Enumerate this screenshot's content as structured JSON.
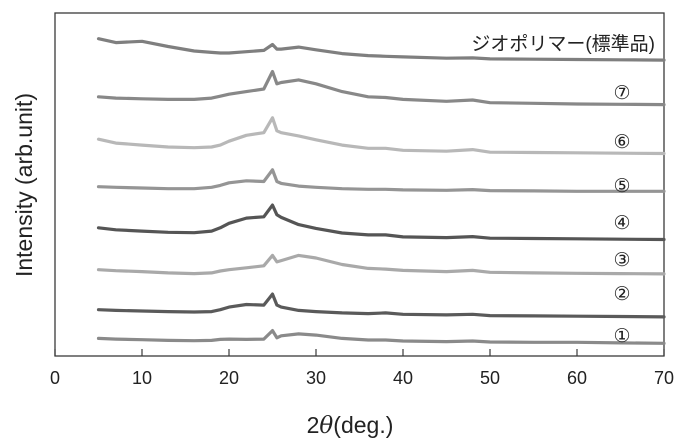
{
  "chart_data": {
    "type": "line",
    "title": "",
    "xlabel_prefix": "2",
    "xlabel_symbol": "θ",
    "xlabel_suffix": "(deg.)",
    "ylabel": "Intensity (arb.unit)",
    "xlim": [
      0,
      70
    ],
    "xticks": [
      0,
      10,
      20,
      30,
      40,
      50,
      60,
      70
    ],
    "yticks_shown": false,
    "grid": false,
    "x": [
      5,
      7,
      10,
      13,
      16,
      18,
      19,
      20,
      22,
      24,
      25,
      25.5,
      26,
      28,
      30,
      33,
      36,
      38,
      40,
      45,
      48,
      50,
      55,
      60,
      65,
      70
    ],
    "series": [
      {
        "name": "①",
        "color": "#8a8a8a",
        "values": [
          0.4,
          0.3,
          0.2,
          0.1,
          0.05,
          0.1,
          0.25,
          0.3,
          0.25,
          0.3,
          1.6,
          0.5,
          0.8,
          1.1,
          0.9,
          0.4,
          0.15,
          0.15,
          0.0,
          -0.1,
          0.0,
          -0.15,
          -0.2,
          -0.2,
          -0.3,
          -0.35
        ]
      },
      {
        "name": "②",
        "color": "#5a5a5a",
        "values": [
          0.2,
          0.1,
          0.0,
          -0.1,
          -0.15,
          -0.1,
          0.2,
          0.6,
          1.0,
          0.9,
          2.6,
          0.9,
          0.6,
          0.1,
          -0.1,
          -0.3,
          -0.4,
          -0.3,
          -0.5,
          -0.6,
          -0.5,
          -0.7,
          -0.75,
          -0.8,
          -0.85,
          -0.9
        ]
      },
      {
        "name": "③",
        "color": "#a9a9a9",
        "values": [
          0.2,
          0.05,
          -0.1,
          -0.3,
          -0.4,
          -0.3,
          0.0,
          0.2,
          0.5,
          0.8,
          2.4,
          1.4,
          1.6,
          2.4,
          2.0,
          1.0,
          0.4,
          0.3,
          0.1,
          -0.1,
          0.1,
          -0.2,
          -0.3,
          -0.35,
          -0.4,
          -0.45
        ]
      },
      {
        "name": "④",
        "color": "#555555",
        "values": [
          0.8,
          0.5,
          0.3,
          0.1,
          0.05,
          0.3,
          0.8,
          1.5,
          2.3,
          2.5,
          4.3,
          2.8,
          2.4,
          1.3,
          0.7,
          0.0,
          -0.3,
          -0.3,
          -0.6,
          -0.7,
          -0.55,
          -0.8,
          -0.85,
          -0.9,
          -0.95,
          -1.0
        ]
      },
      {
        "name": "⑤",
        "color": "#959595",
        "values": [
          0.2,
          0.1,
          0.0,
          -0.1,
          -0.1,
          0.1,
          0.4,
          0.8,
          1.1,
          1.0,
          2.8,
          1.0,
          0.7,
          0.3,
          0.1,
          -0.1,
          -0.2,
          -0.2,
          -0.3,
          -0.35,
          -0.25,
          -0.4,
          -0.45,
          -0.5,
          -0.5,
          -0.5
        ]
      },
      {
        "name": "⑥",
        "color": "#b8b8b8",
        "values": [
          1.2,
          0.6,
          0.3,
          0.0,
          -0.1,
          0.0,
          0.3,
          0.9,
          1.8,
          2.2,
          4.5,
          2.5,
          2.2,
          1.7,
          1.1,
          0.3,
          -0.2,
          -0.2,
          -0.5,
          -0.65,
          -0.4,
          -0.8,
          -0.85,
          -0.9,
          -0.95,
          -1.0
        ]
      },
      {
        "name": "⑦",
        "color": "#888888",
        "values": [
          0.8,
          0.6,
          0.5,
          0.4,
          0.4,
          0.6,
          0.9,
          1.2,
          1.6,
          2.0,
          4.7,
          2.8,
          3.0,
          3.4,
          2.8,
          1.6,
          0.8,
          0.7,
          0.4,
          0.1,
          0.3,
          -0.1,
          -0.2,
          -0.3,
          -0.35,
          -0.4
        ]
      },
      {
        "name": "ジオポリマー(標準品)",
        "color": "#7f7f7f",
        "values": [
          2.2,
          1.6,
          1.8,
          1.0,
          0.3,
          0.1,
          0.0,
          0.0,
          0.2,
          0.4,
          1.3,
          0.6,
          0.6,
          0.9,
          0.5,
          -0.1,
          -0.4,
          -0.5,
          -0.6,
          -0.8,
          -0.75,
          -0.9,
          -0.95,
          -1.0,
          -1.05,
          -1.1
        ]
      }
    ]
  }
}
